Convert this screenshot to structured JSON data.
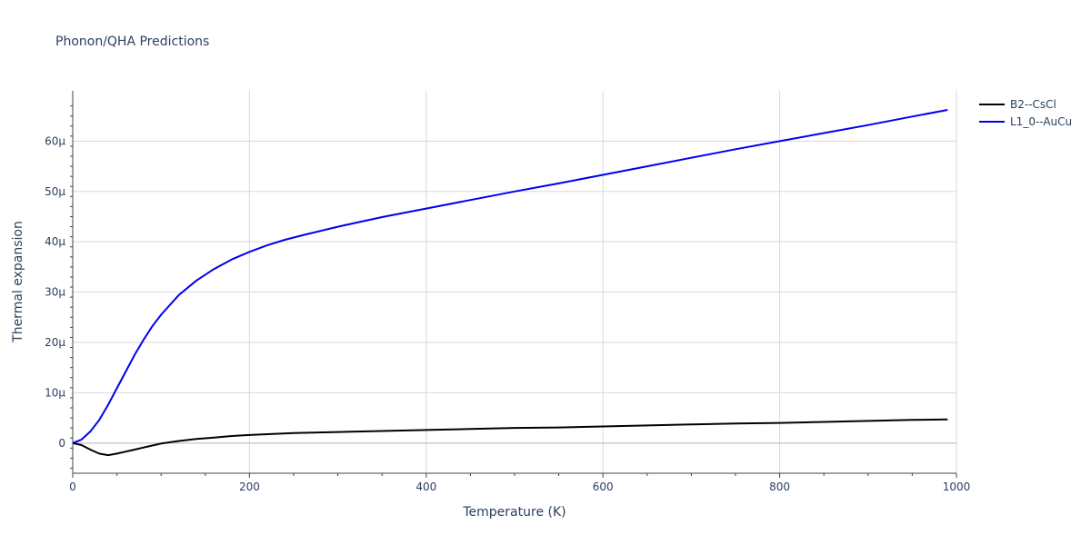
{
  "chart_data": {
    "type": "line",
    "title": "Phonon/QHA Predictions",
    "xlabel": "Temperature (K)",
    "ylabel": "Thermal expansion",
    "xlim": [
      0,
      1000
    ],
    "ylim": [
      -6,
      70
    ],
    "x_ticks": [
      0,
      200,
      400,
      600,
      800,
      1000
    ],
    "x_tick_labels": [
      "0",
      "200",
      "400",
      "600",
      "800",
      "1000"
    ],
    "y_ticks": [
      0,
      10,
      20,
      30,
      40,
      50,
      60
    ],
    "y_tick_labels": [
      "0",
      "10μ",
      "20μ",
      "30μ",
      "40μ",
      "50μ",
      "60μ"
    ],
    "grid": true,
    "legend_position": "top-right",
    "series": [
      {
        "name": "B2--CsCl",
        "color": "#000000",
        "x": [
          0,
          10,
          20,
          30,
          40,
          50,
          60,
          70,
          80,
          90,
          100,
          120,
          140,
          160,
          180,
          200,
          250,
          300,
          350,
          400,
          450,
          500,
          550,
          600,
          650,
          700,
          750,
          800,
          850,
          900,
          950,
          990
        ],
        "y": [
          0,
          -0.4,
          -1.3,
          -2.1,
          -2.4,
          -2.1,
          -1.7,
          -1.3,
          -0.9,
          -0.5,
          -0.1,
          0.4,
          0.8,
          1.1,
          1.4,
          1.6,
          2.0,
          2.2,
          2.4,
          2.6,
          2.8,
          3.0,
          3.1,
          3.3,
          3.5,
          3.7,
          3.9,
          4.0,
          4.2,
          4.4,
          4.6,
          4.7
        ]
      },
      {
        "name": "L1_0--AuCu",
        "color": "#0000ee",
        "x": [
          0,
          10,
          20,
          30,
          40,
          50,
          60,
          70,
          80,
          90,
          100,
          120,
          140,
          160,
          180,
          200,
          220,
          240,
          260,
          300,
          350,
          400,
          450,
          500,
          550,
          600,
          650,
          700,
          750,
          800,
          850,
          900,
          950,
          990
        ],
        "y": [
          0,
          0.7,
          2.3,
          4.6,
          7.6,
          10.9,
          14.2,
          17.5,
          20.5,
          23.2,
          25.5,
          29.4,
          32.3,
          34.6,
          36.5,
          38.0,
          39.3,
          40.4,
          41.3,
          43.0,
          44.9,
          46.6,
          48.3,
          50.0,
          51.6,
          53.3,
          55.0,
          56.7,
          58.4,
          60.0,
          61.6,
          63.2,
          64.9,
          66.2
        ]
      }
    ]
  }
}
